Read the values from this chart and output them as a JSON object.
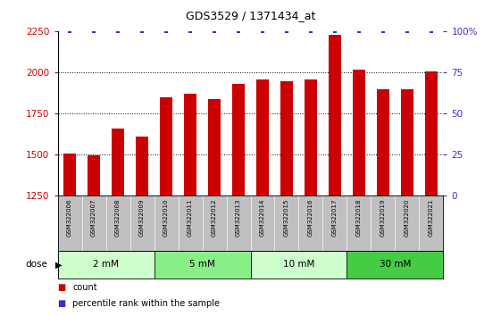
{
  "title": "GDS3529 / 1371434_at",
  "samples": [
    "GSM322006",
    "GSM322007",
    "GSM322008",
    "GSM322009",
    "GSM322010",
    "GSM322011",
    "GSM322012",
    "GSM322013",
    "GSM322014",
    "GSM322015",
    "GSM322016",
    "GSM322017",
    "GSM322018",
    "GSM322019",
    "GSM322020",
    "GSM322021"
  ],
  "counts": [
    1510,
    1495,
    1660,
    1610,
    1850,
    1870,
    1840,
    1930,
    1960,
    1950,
    1960,
    2230,
    2020,
    1900,
    1900,
    2010
  ],
  "percentiles": [
    100,
    100,
    100,
    100,
    100,
    100,
    100,
    100,
    100,
    100,
    100,
    100,
    100,
    100,
    100,
    100
  ],
  "bar_color": "#cc0000",
  "dot_color": "#3333cc",
  "ylim_left": [
    1250,
    2250
  ],
  "ylim_right": [
    0,
    100
  ],
  "yticks_left": [
    1250,
    1500,
    1750,
    2000,
    2250
  ],
  "yticks_right": [
    0,
    25,
    50,
    75,
    100
  ],
  "ytick_labels_right": [
    "0",
    "25",
    "50",
    "75",
    "100%"
  ],
  "dose_groups": [
    {
      "label": "2 mM",
      "start": 0,
      "end": 4,
      "color": "#ccffcc"
    },
    {
      "label": "5 mM",
      "start": 4,
      "end": 8,
      "color": "#88ee88"
    },
    {
      "label": "10 mM",
      "start": 8,
      "end": 12,
      "color": "#ccffcc"
    },
    {
      "label": "30 mM",
      "start": 12,
      "end": 16,
      "color": "#44cc44"
    }
  ],
  "dose_label": "dose",
  "bar_color_legend": "#cc0000",
  "dot_color_legend": "#3333cc",
  "legend_count_label": "count",
  "legend_pct_label": "percentile rank within the sample",
  "bar_width": 0.5,
  "tick_area_color": "#c0c0c0",
  "grid_yticks": [
    1500,
    1750,
    2000
  ]
}
